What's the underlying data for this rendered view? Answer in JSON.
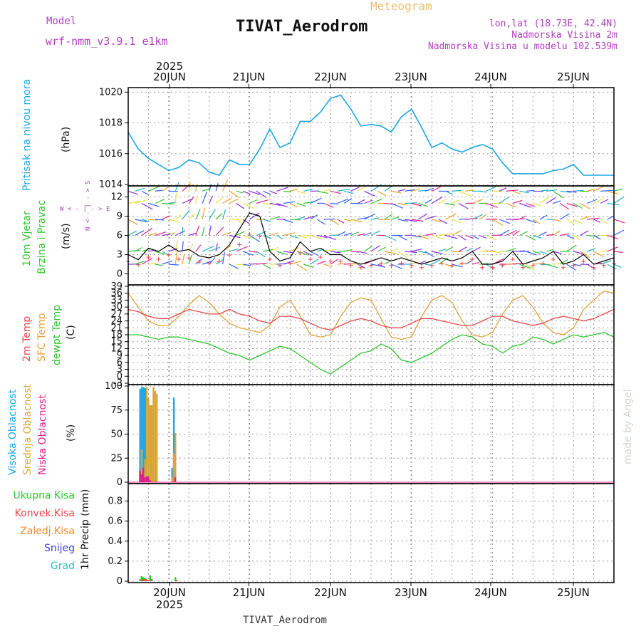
{
  "header": {
    "model_label": "Model",
    "model_name": "wrf-nmm_v3.9.1 e1km",
    "meteogram_label": "Meteogram",
    "station": "TIVAT_Aerodrom",
    "lonlat": "lon,lat (18.73E, 42.4N)",
    "elevation": "Nadmorska Visina 2m",
    "model_elevation": "Nadmorska Visina u modelu 102.539m",
    "footer_station": "TIVAT_Aerodrom",
    "watermark": "made by Angel"
  },
  "colors": {
    "pressure": "#1aa7e6",
    "t2m": "#e8474a",
    "sfc": "#e3a23a",
    "dewpt": "#2ec42e",
    "visoka": "#1aa7e6",
    "srednja": "#d8a637",
    "niska": "#e0208a",
    "ukupna": "#2ec42e",
    "konvek": "#e8474a",
    "zaledj": "#f08a2a",
    "snijeg": "#4040e0",
    "grad": "#30c0c0",
    "wind_label": "#2ec42e",
    "compass": "#b040c0"
  },
  "time_axis": {
    "year_top": "2025",
    "year_bottom": "2025",
    "days": [
      "20JUN",
      "21JUN",
      "22JUN",
      "23JUN",
      "24JUN",
      "25JUN"
    ]
  },
  "wind_compass": [
    "W",
    "<",
    "-",
    "|",
    "-",
    ">",
    "E",
    "N",
    "<",
    "-",
    "|",
    "-",
    ">",
    "S"
  ],
  "chart_data": [
    {
      "type": "line",
      "panel": "pressure",
      "ylabel_lines": [
        "Pritisak na nivou mora"
      ],
      "unit": "(hPa)",
      "y_ticks": [
        "1014",
        "1016",
        "1018",
        "1020"
      ],
      "ylim": [
        1014,
        1020.2
      ],
      "grid": true,
      "x_hours": [
        0,
        3,
        6,
        9,
        12,
        15,
        18,
        21,
        24,
        27,
        30,
        33,
        36,
        39,
        42,
        45,
        48,
        51,
        54,
        57,
        60,
        63,
        66,
        69,
        72,
        75,
        78,
        81,
        84,
        87,
        90,
        93,
        96,
        99,
        102,
        105,
        108,
        111,
        114,
        117,
        120,
        123,
        126,
        129,
        132,
        135,
        138,
        141,
        144
      ],
      "series": [
        {
          "name": "Pritisak na nivou mora",
          "values": [
            1017.4,
            1016.3,
            1015.7,
            1015.3,
            1014.9,
            1015.1,
            1015.6,
            1015.4,
            1014.8,
            1014.6,
            1015.6,
            1015.3,
            1015.3,
            1016.3,
            1017.6,
            1016.4,
            1016.7,
            1018.1,
            1018.1,
            1018.7,
            1019.6,
            1019.8,
            1018.9,
            1017.8,
            1017.9,
            1017.8,
            1017.4,
            1018.4,
            1018.9,
            1017.7,
            1016.4,
            1016.7,
            1016.3,
            1016.1,
            1016.4,
            1016.6,
            1016.3,
            1015.4,
            1014.7,
            1014.7,
            1014.7,
            1014.7,
            1014.9,
            1015.0,
            1015.3,
            1014.6,
            1014.6,
            1014.6,
            1014.6
          ]
        }
      ]
    },
    {
      "type": "line",
      "panel": "wind",
      "ylabel_lines": [
        "10m Vjetar",
        "Brzina i Pravac"
      ],
      "unit": "(m/s)",
      "y_ticks": [
        "0",
        "3",
        "6",
        "9",
        "12"
      ],
      "ylim": [
        -1.5,
        13.5
      ],
      "grid": true,
      "x_hours": [
        0,
        3,
        6,
        9,
        12,
        15,
        18,
        21,
        24,
        27,
        30,
        33,
        36,
        39,
        42,
        45,
        48,
        51,
        54,
        57,
        60,
        63,
        66,
        69,
        72,
        75,
        78,
        81,
        84,
        87,
        90,
        93,
        96,
        99,
        102,
        105,
        108,
        111,
        114,
        117,
        120,
        123,
        126,
        129,
        132,
        135,
        138,
        141,
        144
      ],
      "series": [
        {
          "name": "speed",
          "values": [
            3.0,
            2.2,
            4.0,
            3.5,
            4.5,
            3.5,
            3.8,
            2.8,
            2.5,
            3.0,
            4.5,
            7.0,
            9.5,
            9.0,
            3.5,
            2.0,
            2.5,
            5.0,
            3.5,
            4.0,
            3.0,
            3.0,
            2.0,
            1.5,
            2.0,
            2.5,
            2.0,
            2.5,
            2.0,
            1.5,
            2.0,
            2.5,
            2.0,
            2.5,
            3.5,
            1.5,
            1.5,
            2.0,
            3.5,
            1.5,
            2.0,
            2.5,
            3.5,
            1.5,
            2.0,
            3.0,
            1.5,
            2.0,
            2.5
          ]
        }
      ]
    },
    {
      "type": "line",
      "panel": "temperature",
      "ylabel_lines": [
        "2m Temp",
        "SFC Temp",
        "dewpt Temp"
      ],
      "unit": "(C)",
      "y_ticks": [
        "-3",
        "0",
        "3",
        "6",
        "9",
        "12",
        "15",
        "18",
        "21",
        "24",
        "27",
        "30",
        "33",
        "36",
        "39"
      ],
      "ylim": [
        -3,
        39
      ],
      "grid": true,
      "x_hours": [
        0,
        3,
        6,
        9,
        12,
        15,
        18,
        21,
        24,
        27,
        30,
        33,
        36,
        39,
        42,
        45,
        48,
        51,
        54,
        57,
        60,
        63,
        66,
        69,
        72,
        75,
        78,
        81,
        84,
        87,
        90,
        93,
        96,
        99,
        102,
        105,
        108,
        111,
        114,
        117,
        120,
        123,
        126,
        129,
        132,
        135,
        138,
        141,
        144
      ],
      "series": [
        {
          "name": "2m Temp",
          "values": [
            29,
            28,
            26,
            25,
            25,
            27,
            29,
            28,
            27,
            27,
            29,
            27,
            26,
            24,
            23,
            26,
            26,
            25,
            23,
            21,
            20,
            22,
            24,
            25,
            24,
            22,
            21,
            21,
            23,
            25,
            25,
            24,
            23,
            22,
            22,
            24,
            26,
            26,
            24,
            23,
            22,
            23,
            25,
            26,
            25,
            24,
            25,
            27,
            29
          ]
        },
        {
          "name": "SFC Temp",
          "values": [
            36,
            30,
            24,
            22,
            22,
            26,
            31,
            35,
            32,
            27,
            23,
            21,
            20,
            19,
            22,
            30,
            33,
            26,
            18,
            17,
            18,
            26,
            32,
            34,
            33,
            25,
            17,
            16,
            17,
            26,
            33,
            35,
            32,
            24,
            18,
            17,
            19,
            27,
            33,
            35,
            30,
            23,
            19,
            18,
            21,
            29,
            33,
            37,
            36
          ]
        },
        {
          "name": "dewpt Temp",
          "values": [
            18,
            18,
            17,
            16,
            17,
            17,
            16,
            15,
            14,
            12,
            10,
            9,
            7,
            9,
            11,
            13,
            12,
            9,
            6,
            3,
            1,
            4,
            7,
            10,
            11,
            14,
            12,
            7,
            6,
            8,
            10,
            13,
            16,
            18,
            17,
            14,
            13,
            10,
            13,
            14,
            17,
            16,
            14,
            16,
            18,
            17,
            18,
            19,
            17
          ]
        }
      ]
    },
    {
      "type": "bar",
      "panel": "cloud",
      "ylabel_lines": [
        "Visoka Oblacnost",
        "Srednja Oblacnost",
        "Niska Oblacnost"
      ],
      "unit": "(%)",
      "y_ticks": [
        "0",
        "25",
        "50",
        "75",
        "100"
      ],
      "ylim": [
        0,
        100
      ],
      "grid": true,
      "x_hours": [
        3,
        3.5,
        4,
        4.5,
        5,
        5.5,
        6,
        6.5,
        7,
        7.5,
        8,
        8.5,
        9,
        13,
        13.5,
        14,
        14.5
      ],
      "series": [
        {
          "name": "Visoka Oblacnost",
          "values": [
            0,
            0,
            97,
            99,
            99,
            98,
            0,
            0,
            0,
            0,
            0,
            0,
            0,
            0,
            15,
            88,
            0
          ]
        },
        {
          "name": "Srednja Oblacnost",
          "values": [
            0,
            0,
            34,
            0,
            24,
            99,
            88,
            80,
            80,
            99,
            95,
            92,
            0,
            5,
            30,
            51,
            0
          ]
        },
        {
          "name": "Niska Oblacnost",
          "values": [
            12,
            8,
            15,
            5,
            6,
            6,
            2,
            0,
            0,
            0,
            0,
            0,
            0,
            0,
            5,
            0,
            0
          ]
        }
      ]
    },
    {
      "type": "bar",
      "panel": "precip",
      "ylabel_lines": [
        "1hr Precip (mm)"
      ],
      "legend": [
        "Ukupna Kisa",
        "Konvek.Kisa",
        "Zaledj.Kisa",
        "Snijeg",
        "Grad"
      ],
      "y_ticks": [
        "0",
        "0.2",
        "0.4",
        "0.6",
        "0.8"
      ],
      "ylim": [
        0,
        0.96
      ],
      "grid": true,
      "x_hours": [
        3.5,
        4,
        4.5,
        5,
        5.5,
        6,
        6.5,
        7,
        14,
        14.5
      ],
      "series": [
        {
          "name": "Ukupna Kisa",
          "values": [
            0.02,
            0.05,
            0.04,
            0.03,
            0.02,
            0.0,
            0.06,
            0.0,
            0.04,
            0.0
          ]
        },
        {
          "name": "Konvek.Kisa",
          "values": [
            0.01,
            0.02,
            0.02,
            0.01,
            0.01,
            0.0,
            0.02,
            0.0,
            0.01,
            0.0
          ]
        }
      ]
    }
  ]
}
